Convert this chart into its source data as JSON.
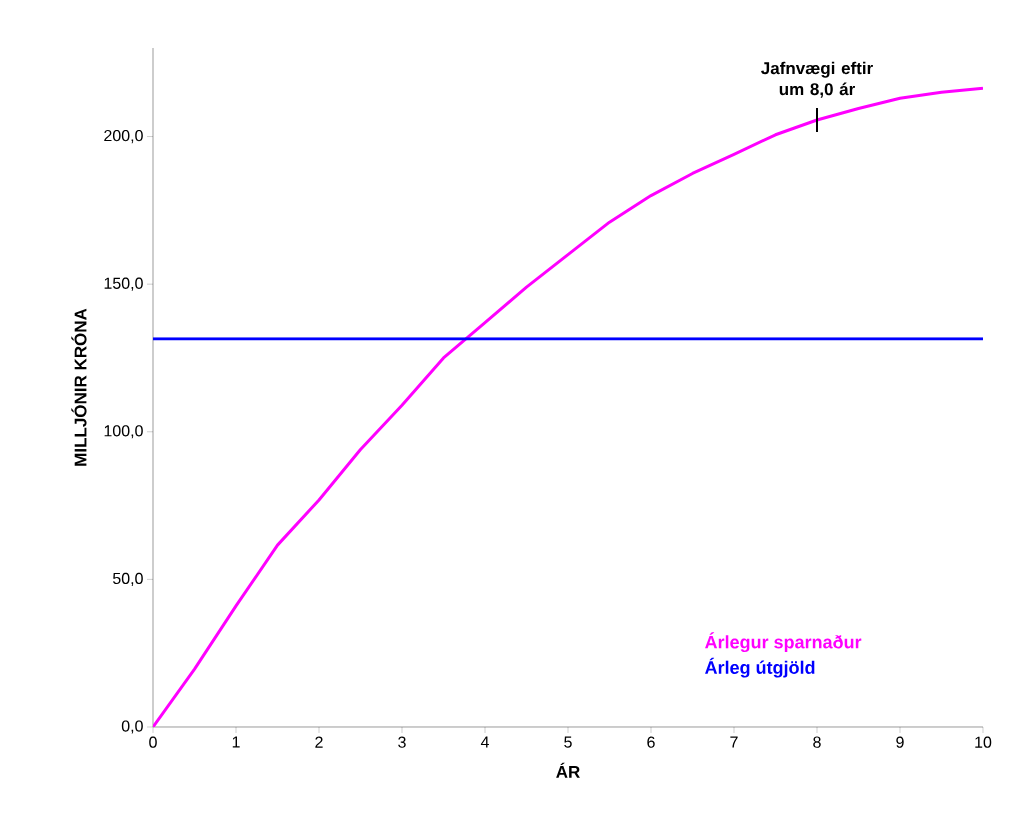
{
  "chart_data": {
    "type": "line",
    "xlabel": "ÁR",
    "ylabel": "MILLJÓNIR KRÓNA",
    "xlim": [
      0,
      10
    ],
    "xticks": [
      0,
      1,
      2,
      3,
      4,
      5,
      6,
      7,
      8,
      9,
      10
    ],
    "ylim": [
      0,
      230
    ],
    "yticks": [
      {
        "value": 0,
        "label": "0,0"
      },
      {
        "value": 50,
        "label": "50,0"
      },
      {
        "value": 100,
        "label": "100,0"
      },
      {
        "value": 150,
        "label": "150,0"
      },
      {
        "value": 200,
        "label": "200,0"
      }
    ],
    "x": [
      0,
      0.5,
      1,
      1.5,
      2,
      2.5,
      3,
      3.5,
      4,
      4.5,
      5,
      5.5,
      6,
      6.5,
      7,
      7.5,
      8,
      8.5,
      9,
      9.5,
      10
    ],
    "series": [
      {
        "name": "Árlegur sparnaður",
        "color": "#ff00ff",
        "values": [
          0,
          19.6,
          41,
          61.6,
          76.9,
          94,
          109,
          125,
          137,
          149,
          160,
          171,
          180,
          187.5,
          194,
          200.6,
          205.6,
          209.5,
          213,
          215,
          216.4
        ]
      },
      {
        "name": "Árleg útgjöld",
        "color": "#0000ff",
        "x": [
          0,
          10
        ],
        "values": [
          131.5,
          131.5
        ]
      }
    ],
    "annotations": [
      {
        "text": "Jafnvægi eftir um 8,0 ár",
        "x": 8,
        "y": 205.6
      }
    ],
    "legend": "bottom right",
    "grid": false,
    "marker": "none",
    "line_style": "solid"
  }
}
